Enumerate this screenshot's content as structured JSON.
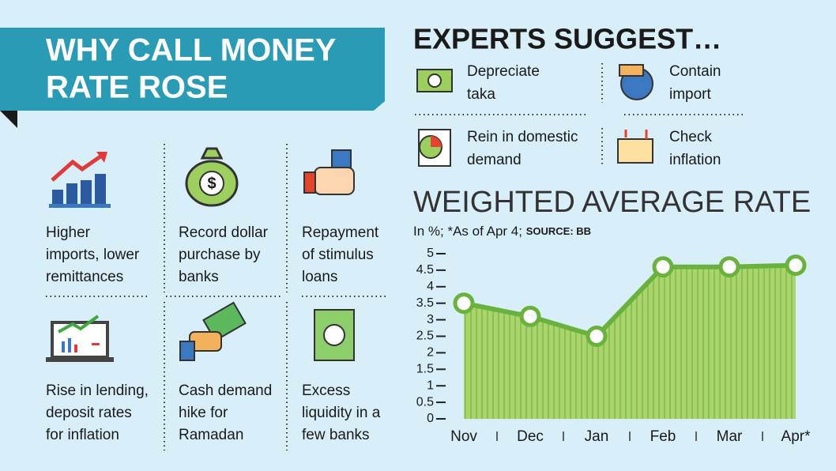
{
  "left": {
    "title_lines": [
      "WHY CALL MONEY",
      "RATE ROSE"
    ],
    "items": [
      {
        "lines": [
          "Higher",
          "imports, lower",
          "remittances"
        ]
      },
      {
        "lines": [
          "Record dollar",
          "purchase by",
          "banks"
        ]
      },
      {
        "lines": [
          "Repayment",
          "of stimulus",
          "loans"
        ]
      },
      {
        "lines": [
          "Rise in lending,",
          "deposit rates",
          "for inflation"
        ]
      },
      {
        "lines": [
          "Cash demand",
          "hike for",
          "Ramadan"
        ]
      },
      {
        "lines": [
          "Excess",
          "liquidity in a",
          "few banks"
        ]
      }
    ]
  },
  "experts": {
    "title": "EXPERTS SUGGEST…",
    "items": [
      {
        "lines": [
          "Depreciate",
          "taka"
        ]
      },
      {
        "lines": [
          "Contain",
          "import"
        ]
      },
      {
        "lines": [
          "Rein in domestic",
          "demand"
        ]
      },
      {
        "lines": [
          "Check",
          "inflation"
        ]
      }
    ]
  },
  "chart_data": {
    "type": "area",
    "title": "WEIGHTED AVERAGE RATE",
    "subtitle": "In %; *As of Apr 4;",
    "source": "SOURCE: BB",
    "categories": [
      "Nov",
      "Dec",
      "Jan",
      "Feb",
      "Mar",
      "Apr*"
    ],
    "values": [
      3.5,
      3.1,
      2.5,
      4.6,
      4.6,
      4.65
    ],
    "color": "#6ab23e",
    "fill_color": "#a9d46e",
    "ylim": [
      0,
      5
    ],
    "yticks": [
      0,
      0.5,
      1,
      1.5,
      2,
      2.5,
      3,
      3.5,
      4,
      4.5,
      5
    ]
  }
}
